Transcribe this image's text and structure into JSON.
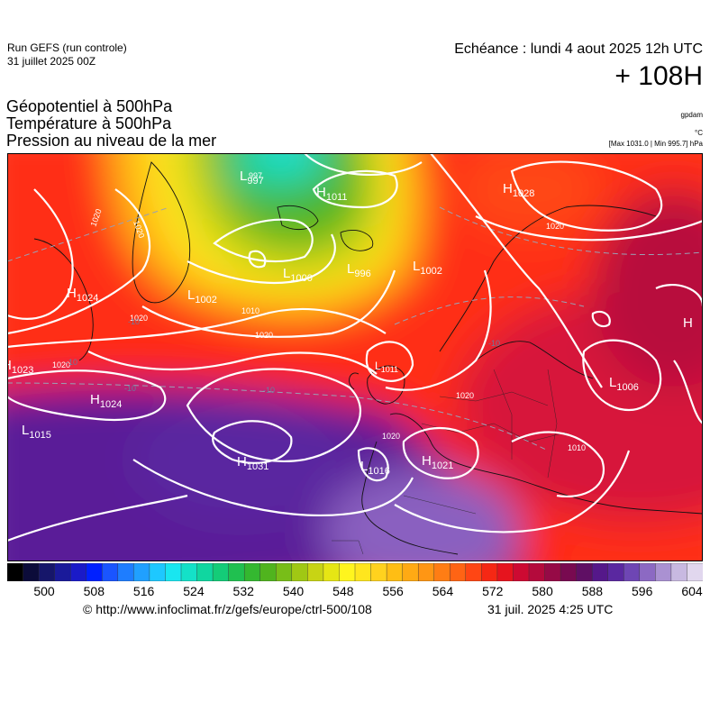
{
  "header": {
    "run_title": "Run GEFS (run controle)",
    "run_date": "31 juillet 2025 00Z",
    "valid_time": "Echéance : lundi 4 aout 2025 12h UTC",
    "lead_time": "+ 108H"
  },
  "params": {
    "line1": "Géopotentiel à 500hPa",
    "line2": "Température à 500hPa",
    "line3": "Pression au niveau de la mer"
  },
  "units": {
    "geopotential": "gpdam",
    "temperature": "°C",
    "pressure": "[Max 1031.0 | Min 995.7] hPa"
  },
  "colorbar": {
    "labels": [
      "500",
      "508",
      "516",
      "524",
      "532",
      "540",
      "548",
      "556",
      "564",
      "572",
      "580",
      "588",
      "596",
      "604"
    ],
    "colors": [
      "#000000",
      "#0c0c3a",
      "#16166a",
      "#1a1a9a",
      "#1a1ac8",
      "#0020ff",
      "#1a55ff",
      "#1e7dff",
      "#20a0ff",
      "#1ec8ff",
      "#19e6f0",
      "#14e1c8",
      "#10d6a0",
      "#14cc78",
      "#20c050",
      "#34b830",
      "#50b41e",
      "#78be18",
      "#a0c814",
      "#c8d414",
      "#e6e614",
      "#fff51e",
      "#ffe61e",
      "#ffd21e",
      "#ffbe14",
      "#ffaa14",
      "#ff9614",
      "#ff7d14",
      "#ff6414",
      "#ff4614",
      "#f52814",
      "#e6141e",
      "#cd0a32",
      "#b40a3c",
      "#960a46",
      "#780a50",
      "#5f0f64",
      "#55188a",
      "#5a28a0",
      "#6e46b4",
      "#8c69c3",
      "#aa91d2",
      "#c8b9e1",
      "#e1d7ee"
    ]
  },
  "pressure_centers": [
    {
      "type": "H",
      "value": "1023"
    },
    {
      "type": "H",
      "value": "1024"
    },
    {
      "type": "H",
      "value": "1024"
    },
    {
      "type": "H",
      "value": "1028"
    },
    {
      "type": "H",
      "value": "1031"
    },
    {
      "type": "H",
      "value": "1021"
    },
    {
      "type": "H",
      "value": "1011"
    },
    {
      "type": "H",
      "value": ""
    },
    {
      "type": "L",
      "value": "997"
    },
    {
      "type": "L",
      "value": ""
    },
    {
      "type": "L",
      "value": "1000"
    },
    {
      "type": "L",
      "value": "996"
    },
    {
      "type": "L",
      "value": "1002"
    },
    {
      "type": "L",
      "value": "1002"
    },
    {
      "type": "L",
      "value": "1015"
    },
    {
      "type": "L",
      "value": "1016"
    },
    {
      "type": "L",
      "value": "1006"
    },
    {
      "type": "L",
      "value": "1011"
    }
  ],
  "isobar_labels": [
    "1020",
    "1020",
    "1020",
    "1020",
    "1020",
    "1020",
    "1010",
    "1010",
    "1020",
    "1020",
    "997"
  ],
  "isotherm_labels": [
    "-10",
    "-10",
    "-10",
    "-10",
    "-10"
  ],
  "footer": {
    "credit": "© http://www.infoclimat.fr/z/gefs/europe/ctrl-500/108",
    "timestamp": "31 juil. 2025  4:25 UTC"
  }
}
